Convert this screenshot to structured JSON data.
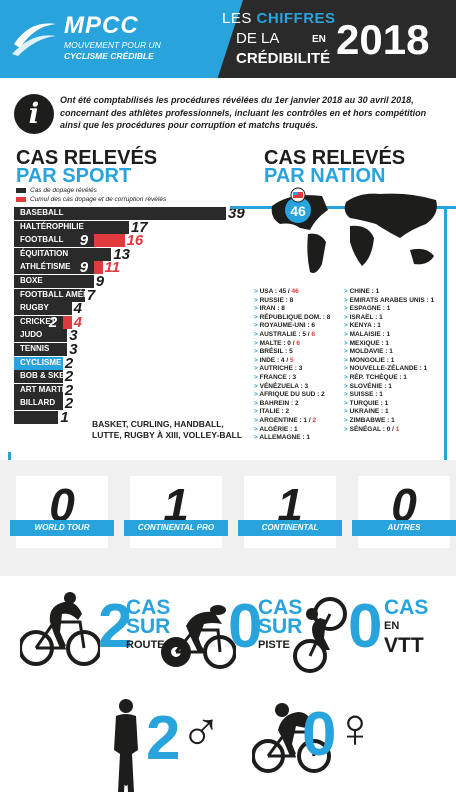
{
  "header": {
    "brand": "MPCC",
    "brand_line1": "MOUVEMENT POUR UN",
    "brand_line2": "CYCLISME CRÉDIBLE",
    "title_prefix": "LES",
    "title_accent": "CHIFFRES",
    "title_line2": "DE LA",
    "title_line3": "CRÉDIBILITÉ",
    "title_en": "EN",
    "year": "2018"
  },
  "intro": {
    "icon": "info-icon",
    "text": "Ont été comptabilisés les procédures révélées du 1er janvier 2018 au 30 avril 2018, concernant des athlètes professionnels, incluant les contrôles en et hors compétition ainsi que les procédures pour corruption et matchs truqués."
  },
  "sport": {
    "title1": "CAS RELEVÉS",
    "title2": "PAR SPORT",
    "legend_dark": "Cas de dopage révélés",
    "legend_red": "Cumul des cas dopage et de corruption révélés",
    "colors": {
      "dark": "#2a2a2a",
      "red": "#e03a3e",
      "blue": "#29a3dc"
    },
    "rows": [
      {
        "label": "BASEBALL",
        "value": "39",
        "cumul": "",
        "highlight": false,
        "v": 39,
        "c": 0
      },
      {
        "label": "HALTÉROPHILIE",
        "value": "17",
        "cumul": "",
        "highlight": false,
        "v": 17,
        "c": 0
      },
      {
        "label": "FOOTBALL",
        "value": "9",
        "cumul": "16",
        "highlight": false,
        "v": 9,
        "c": 16
      },
      {
        "label": "ÉQUITATION",
        "value": "13",
        "cumul": "",
        "highlight": false,
        "v": 13,
        "c": 0
      },
      {
        "label": "ATHLÉTISME",
        "value": "9",
        "cumul": "11",
        "highlight": false,
        "v": 9,
        "c": 11
      },
      {
        "label": "BOXE",
        "value": "9",
        "cumul": "",
        "highlight": false,
        "v": 9,
        "c": 0
      },
      {
        "label": "FOOTBALL AMÉRICAIN",
        "value": "7",
        "cumul": "",
        "highlight": false,
        "v": 7,
        "c": 0
      },
      {
        "label": "RUGBY",
        "value": "4",
        "cumul": "",
        "highlight": false,
        "v": 4,
        "c": 0
      },
      {
        "label": "CRICKET",
        "value": "2",
        "cumul": "4",
        "highlight": false,
        "v": 2,
        "c": 4
      },
      {
        "label": "JUDO",
        "value": "3",
        "cumul": "",
        "highlight": false,
        "v": 3,
        "c": 0
      },
      {
        "label": "TENNIS",
        "value": "3",
        "cumul": "",
        "highlight": false,
        "v": 3,
        "c": 0
      },
      {
        "label": "CYCLISME",
        "value": "2",
        "cumul": "",
        "highlight": true,
        "v": 2,
        "c": 0
      },
      {
        "label": "BOB & SKELETON",
        "value": "2",
        "cumul": "",
        "highlight": false,
        "v": 2,
        "c": 0
      },
      {
        "label": "ART MARTIAL",
        "value": "2",
        "cumul": "",
        "highlight": false,
        "v": 2,
        "c": 0
      },
      {
        "label": "BILLARD",
        "value": "2",
        "cumul": "",
        "highlight": false,
        "v": 2,
        "c": 0
      },
      {
        "label": "",
        "value": "1",
        "cumul": "",
        "highlight": false,
        "v": 1,
        "c": 0
      }
    ],
    "others_line1": "BASKET, CURLING, HANDBALL,",
    "others_line2": "LUTTE, RUGBY À XIII, VOLLEY-BALL"
  },
  "nation": {
    "title1": "CAS RELEVÉS",
    "title2": "PAR NATION",
    "usa_count": "46",
    "left": [
      [
        "USA : 45 / ",
        "46"
      ],
      [
        "RUSSIE : 8",
        ""
      ],
      [
        "IRAN : 8",
        ""
      ],
      [
        "RÉPUBLIQUE DOM. : 8",
        ""
      ],
      [
        "ROYAUME-UNI : 6",
        ""
      ],
      [
        "AUSTRALIE : 5 / ",
        "6"
      ],
      [
        "MALTE : 0 / ",
        "6"
      ],
      [
        "BRÉSIL : 5",
        ""
      ],
      [
        "INDE : 4 / ",
        "5"
      ],
      [
        "AUTRICHE : 3",
        ""
      ],
      [
        "FRANCE : 3",
        ""
      ],
      [
        "VÉNÉZUELA : 3",
        ""
      ],
      [
        "AFRIQUE DU SUD : 2",
        ""
      ],
      [
        "BAHREIN : 2",
        ""
      ],
      [
        "ITALIE : 2",
        ""
      ],
      [
        "ARGENTINE : 1 / ",
        "2"
      ],
      [
        "ALGÉRIE : 1",
        ""
      ],
      [
        "ALLEMAGNE : 1",
        ""
      ]
    ],
    "right": [
      [
        "CHINE : 1",
        ""
      ],
      [
        "EMIRATS ARABES UNIS : 1",
        ""
      ],
      [
        "ESPAGNE : 1",
        ""
      ],
      [
        "ISRAËL : 1",
        ""
      ],
      [
        "KENYA : 1",
        ""
      ],
      [
        "MALAISIE : 1",
        ""
      ],
      [
        "MEXIQUE : 1",
        ""
      ],
      [
        "MOLDAVIE : 1",
        ""
      ],
      [
        "MONGOLIE : 1",
        ""
      ],
      [
        "NOUVELLE-ZÉLANDE : 1",
        ""
      ],
      [
        "RÉP. TCHÈQUE : 1",
        ""
      ],
      [
        "SLOVÉNIE : 1",
        ""
      ],
      [
        "SUISSE : 1",
        ""
      ],
      [
        "TURQUIE : 1",
        ""
      ],
      [
        "UKRAINE : 1",
        ""
      ],
      [
        "ZIMBABWE : 1",
        ""
      ],
      [
        "SÉNÉGAL : 0 / ",
        "1"
      ]
    ]
  },
  "categories": [
    {
      "value": "0",
      "label": "WORLD TOUR"
    },
    {
      "value": "1",
      "label": "CONTINENTAL PRO"
    },
    {
      "value": "1",
      "label": "CONTINENTAL"
    },
    {
      "value": "0",
      "label": "AUTRES"
    }
  ],
  "disciplines": [
    {
      "value": "2",
      "cas": "CAS",
      "sur": "SUR",
      "where": "ROUTE"
    },
    {
      "value": "0",
      "cas": "CAS",
      "sur": "SUR",
      "where": "PISTE"
    },
    {
      "value": "0",
      "cas": "CAS",
      "sur": "EN",
      "where": "VTT"
    }
  ],
  "gender": [
    {
      "value": "2",
      "symbol": "♂"
    },
    {
      "value": "0",
      "symbol": "♀"
    }
  ]
}
